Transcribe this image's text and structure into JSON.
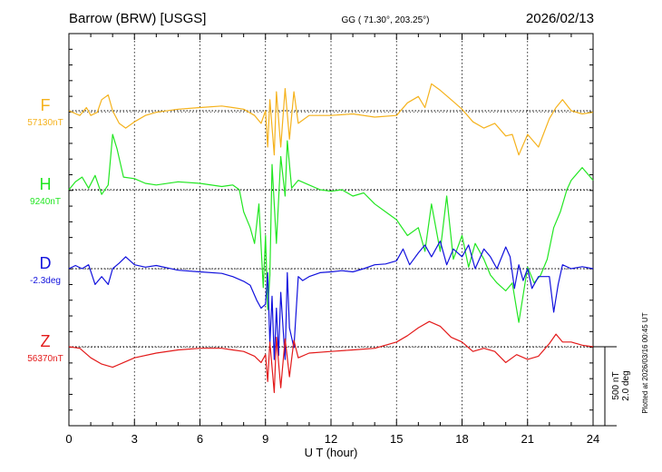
{
  "header": {
    "station": "Barrow (BRW)  [USGS]",
    "coords": "GG ( 71.30°, 203.25°)",
    "date": "2026/02/13"
  },
  "footer": {
    "plotted": "Plotted at 2026/03/16 00:45 UT"
  },
  "scale_bar": {
    "nT": "500 nT",
    "deg": "2.0 deg"
  },
  "colors": {
    "F": "#f5b21c",
    "H": "#22e622",
    "D": "#1111dd",
    "Z": "#e31a1a",
    "frame": "#000000"
  },
  "chart_data": {
    "type": "line",
    "xlabel": "U T (hour)",
    "xlim": [
      0,
      24
    ],
    "xticks": [
      "0",
      "3",
      "6",
      "9",
      "12",
      "15",
      "18",
      "21",
      "24"
    ],
    "grid": true,
    "scale_per_div": 500,
    "series": [
      {
        "name": "F",
        "unit_label": "57130nT",
        "baseline": 57130,
        "x": [
          0,
          0.5,
          0.8,
          1,
          1.3,
          1.5,
          1.8,
          2,
          2.3,
          2.6,
          3,
          3.5,
          4,
          5,
          6,
          7,
          7.5,
          8,
          8.5,
          8.8,
          9,
          9.1,
          9.2,
          9.4,
          9.5,
          9.7,
          9.9,
          10.1,
          10.3,
          10.5,
          11,
          12,
          13,
          14,
          15,
          15.5,
          16,
          16.3,
          16.6,
          17,
          17.5,
          18,
          18.5,
          19,
          19.5,
          20,
          20.3,
          20.6,
          21,
          21.5,
          22,
          22.3,
          22.6,
          23,
          23.5,
          24
        ],
        "values": [
          57130,
          57100,
          57150,
          57100,
          57120,
          57200,
          57230,
          57130,
          57050,
          57020,
          57060,
          57100,
          57120,
          57140,
          57150,
          57160,
          57150,
          57140,
          57100,
          57050,
          57130,
          56900,
          57200,
          56850,
          57250,
          56900,
          57270,
          56950,
          57250,
          57050,
          57100,
          57100,
          57110,
          57090,
          57100,
          57180,
          57220,
          57150,
          57300,
          57260,
          57200,
          57140,
          57060,
          57020,
          57050,
          56970,
          56980,
          56850,
          56980,
          56900,
          57080,
          57150,
          57200,
          57130,
          57110,
          57120
        ]
      },
      {
        "name": "H",
        "unit_label": "9240nT",
        "baseline": 9240,
        "x": [
          0,
          0.3,
          0.6,
          0.9,
          1.2,
          1.5,
          1.8,
          2,
          2.2,
          2.5,
          3,
          3.5,
          4,
          5,
          6,
          7,
          7.5,
          7.8,
          8,
          8.3,
          8.5,
          8.7,
          8.9,
          9,
          9.1,
          9.2,
          9.3,
          9.5,
          9.7,
          9.9,
          10,
          10.2,
          10.5,
          11,
          11.5,
          12,
          12.5,
          13,
          13.5,
          14,
          14.5,
          15,
          15.5,
          16,
          16.3,
          16.6,
          17,
          17.3,
          17.6,
          18,
          18.3,
          18.6,
          19,
          19.3,
          19.6,
          20,
          20.3,
          20.6,
          21,
          21.3,
          21.6,
          21.9,
          22.2,
          22.5,
          22.8,
          23,
          23.5,
          24
        ],
        "values": [
          9240,
          9290,
          9320,
          9250,
          9330,
          9210,
          9270,
          9590,
          9500,
          9320,
          9310,
          9280,
          9270,
          9290,
          9280,
          9260,
          9270,
          9240,
          9100,
          9000,
          8900,
          9150,
          8620,
          8950,
          8480,
          8700,
          9400,
          8900,
          9450,
          9200,
          9550,
          9250,
          9300,
          9270,
          9240,
          9230,
          9240,
          9200,
          9220,
          9150,
          9100,
          9050,
          8950,
          9000,
          8850,
          9150,
          8850,
          9200,
          8800,
          8950,
          8750,
          8900,
          8800,
          8700,
          8650,
          8600,
          8650,
          8400,
          8750,
          8650,
          8700,
          8800,
          9000,
          9100,
          9240,
          9300,
          9380,
          9300
        ]
      },
      {
        "name": "D",
        "unit_label": "-2.3deg",
        "baseline": -2.3,
        "x": [
          0,
          0.3,
          0.6,
          0.9,
          1.2,
          1.5,
          1.8,
          2,
          2.3,
          2.6,
          3,
          3.5,
          4,
          5,
          6,
          7,
          7.5,
          8,
          8.3,
          8.6,
          8.8,
          9,
          9.1,
          9.2,
          9.3,
          9.4,
          9.5,
          9.6,
          9.7,
          9.9,
          10,
          10.1,
          10.3,
          10.5,
          10.7,
          11,
          11.5,
          12,
          12.5,
          13,
          13.5,
          14,
          14.5,
          15,
          15.3,
          15.6,
          16,
          16.3,
          16.6,
          17,
          17.3,
          17.6,
          18,
          18.3,
          18.6,
          19,
          19.3,
          19.6,
          20,
          20.2,
          20.4,
          20.6,
          20.8,
          21,
          21.2,
          21.5,
          22,
          22.2,
          22.4,
          22.6,
          23,
          23.5,
          24
        ],
        "values": [
          -2.3,
          -2.22,
          -2.3,
          -2.2,
          -2.7,
          -2.5,
          -2.7,
          -2.3,
          -2.16,
          -2.0,
          -2.2,
          -2.26,
          -2.22,
          -2.34,
          -2.38,
          -2.42,
          -2.5,
          -2.62,
          -2.72,
          -3.1,
          -3.3,
          -3.2,
          -2.4,
          -4.2,
          -3.0,
          -4.6,
          -3.3,
          -4.5,
          -2.9,
          -4.6,
          -2.4,
          -3.8,
          -4.3,
          -2.5,
          -2.6,
          -2.5,
          -2.4,
          -2.38,
          -2.35,
          -2.38,
          -2.3,
          -2.2,
          -2.18,
          -2.1,
          -1.8,
          -2.2,
          -1.9,
          -1.7,
          -2.0,
          -1.6,
          -2.2,
          -1.8,
          -2.0,
          -1.7,
          -2.3,
          -1.8,
          -2.0,
          -2.3,
          -1.75,
          -2.0,
          -2.8,
          -2.2,
          -2.6,
          -2.3,
          -2.8,
          -2.5,
          -2.5,
          -3.4,
          -2.7,
          -2.2,
          -2.3,
          -2.25,
          -2.3
        ]
      },
      {
        "name": "Z",
        "unit_label": "56370nT",
        "baseline": 56370,
        "x": [
          0,
          0.5,
          1,
          1.5,
          2,
          2.5,
          3,
          4,
          5,
          6,
          7,
          7.5,
          8,
          8.5,
          8.8,
          9,
          9.1,
          9.2,
          9.4,
          9.5,
          9.7,
          9.9,
          10.1,
          10.3,
          10.5,
          11,
          12,
          13,
          14,
          15,
          15.5,
          16,
          16.5,
          17,
          17.5,
          18,
          18.5,
          19,
          19.5,
          20,
          20.5,
          21,
          21.5,
          22,
          22.3,
          22.6,
          23,
          23.5,
          24
        ],
        "values": [
          56370,
          56360,
          56300,
          56260,
          56240,
          56270,
          56300,
          56330,
          56350,
          56360,
          56360,
          56350,
          56340,
          56310,
          56270,
          56320,
          56150,
          56400,
          56080,
          56430,
          56110,
          56420,
          56180,
          56410,
          56300,
          56330,
          56340,
          56350,
          56360,
          56400,
          56440,
          56490,
          56530,
          56500,
          56430,
          56400,
          56340,
          56360,
          56340,
          56270,
          56320,
          56290,
          56310,
          56390,
          56450,
          56400,
          56400,
          56380,
          56370
        ]
      }
    ]
  }
}
